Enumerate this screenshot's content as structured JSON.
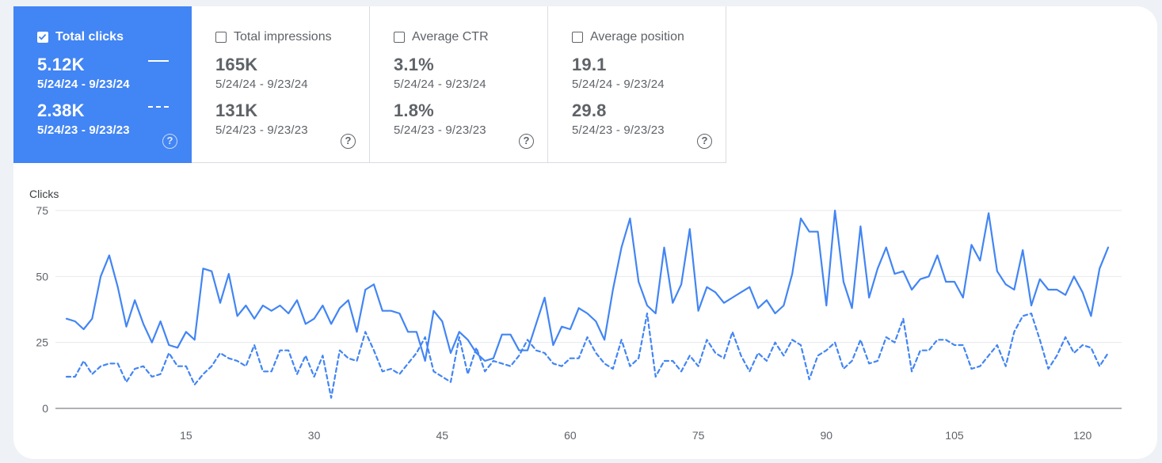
{
  "metrics": [
    {
      "label": "Total clicks",
      "checked": true,
      "current_value": "5.12K",
      "current_range": "5/24/24 - 9/23/24",
      "previous_value": "2.38K",
      "previous_range": "5/24/23 - 9/23/23",
      "help": "?"
    },
    {
      "label": "Total impressions",
      "checked": false,
      "current_value": "165K",
      "current_range": "5/24/24 - 9/23/24",
      "previous_value": "131K",
      "previous_range": "5/24/23 - 9/23/23",
      "help": "?"
    },
    {
      "label": "Average CTR",
      "checked": false,
      "current_value": "3.1%",
      "current_range": "5/24/24 - 9/23/24",
      "previous_value": "1.8%",
      "previous_range": "5/24/23 - 9/23/23",
      "help": "?"
    },
    {
      "label": "Average position",
      "checked": false,
      "current_value": "19.1",
      "current_range": "5/24/24 - 9/23/24",
      "previous_value": "29.8",
      "previous_range": "5/24/23 - 9/23/23",
      "help": "?"
    }
  ],
  "colors": {
    "accent": "#4285f4",
    "grid": "#e8eaed",
    "text": "#5f6368"
  },
  "chart_data": {
    "type": "line",
    "ylabel": "Clicks",
    "ylim": [
      0,
      75
    ],
    "yticks": [
      0,
      25,
      50,
      75
    ],
    "xlim": [
      1,
      123
    ],
    "xticks": [
      15,
      30,
      45,
      60,
      75,
      90,
      105,
      120
    ],
    "grid": true,
    "series": [
      {
        "style": "solid",
        "values": [
          34,
          33,
          30,
          34,
          50,
          58,
          46,
          31,
          41,
          32,
          25,
          33,
          24,
          23,
          29,
          26,
          53,
          52,
          40,
          51,
          35,
          39,
          34,
          39,
          37,
          39,
          36,
          41,
          32,
          34,
          39,
          32,
          38,
          41,
          29,
          45,
          47,
          37,
          37,
          36,
          29,
          29,
          18,
          37,
          33,
          21,
          29,
          26,
          21,
          18,
          19,
          28,
          28,
          22,
          22,
          32,
          42,
          24,
          31,
          30,
          38,
          36,
          33,
          26,
          45,
          61,
          72,
          48,
          39,
          36,
          61,
          40,
          47,
          68,
          37,
          46,
          44,
          40,
          42,
          44,
          46,
          38,
          41,
          36,
          39,
          51,
          72,
          67,
          67,
          39,
          75,
          48,
          38,
          69,
          42,
          53,
          61,
          51,
          52,
          45,
          49,
          50,
          58,
          48,
          48,
          42,
          62,
          56,
          74,
          52,
          47,
          45,
          60,
          39,
          49,
          45,
          45,
          43,
          50,
          44,
          35,
          53,
          61
        ]
      },
      {
        "style": "dashed",
        "values": [
          12,
          12,
          18,
          13,
          16,
          17,
          17,
          10,
          15,
          16,
          12,
          13,
          21,
          16,
          16,
          9,
          13,
          16,
          21,
          19,
          18,
          16,
          24,
          14,
          14,
          22,
          22,
          13,
          20,
          12,
          20,
          4,
          22,
          19,
          18,
          29,
          22,
          14,
          15,
          13,
          17,
          21,
          27,
          14,
          12,
          10,
          27,
          13,
          23,
          14,
          18,
          17,
          16,
          20,
          26,
          22,
          21,
          17,
          16,
          19,
          19,
          27,
          21,
          17,
          15,
          26,
          16,
          19,
          36,
          12,
          18,
          18,
          14,
          20,
          16,
          26,
          21,
          19,
          29,
          20,
          14,
          21,
          18,
          25,
          20,
          26,
          24,
          11,
          20,
          22,
          25,
          15,
          18,
          26,
          17,
          18,
          27,
          25,
          34,
          14,
          22,
          22,
          26,
          26,
          24,
          24,
          15,
          16,
          20,
          24,
          16,
          29,
          35,
          36,
          26,
          15,
          20,
          27,
          21,
          24,
          23,
          16,
          21
        ]
      }
    ]
  }
}
